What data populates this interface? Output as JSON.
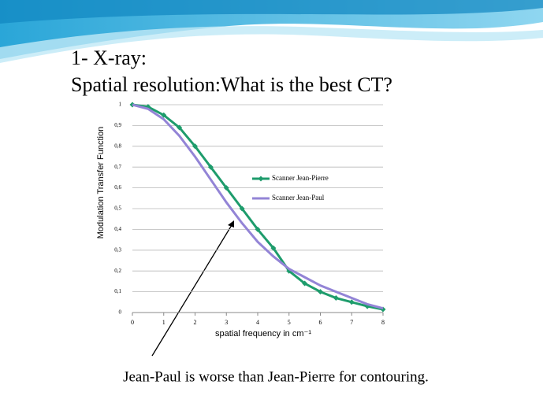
{
  "chart_data": {
    "type": "line",
    "title": "1- X-ray:",
    "subtitle": "Spatial resolution:What is the best CT?",
    "x_label": "spatial frequency in cm⁻¹",
    "y_label": "Modulation Transfer Function",
    "annotation": "Jean-Paul is worse than Jean-Pierre for contouring.",
    "x": [
      0,
      0.5,
      1,
      1.5,
      2,
      2.5,
      3,
      3.5,
      4,
      4.5,
      5,
      5.5,
      6,
      6.5,
      7,
      7.5,
      8
    ],
    "series": [
      {
        "name": "Scanner Jean-Pierre",
        "color": "#1e9c6c",
        "marker": "diamond",
        "values": [
          1,
          0.99,
          0.95,
          0.89,
          0.8,
          0.7,
          0.6,
          0.5,
          0.4,
          0.31,
          0.2,
          0.14,
          0.1,
          0.07,
          0.05,
          0.03,
          0.015
        ]
      },
      {
        "name": "Scanner Jean-Paul",
        "color": "#9384d6",
        "marker": "none",
        "values": [
          1,
          0.98,
          0.93,
          0.85,
          0.75,
          0.64,
          0.53,
          0.43,
          0.34,
          0.27,
          0.21,
          0.17,
          0.13,
          0.1,
          0.07,
          0.04,
          0.02
        ]
      }
    ],
    "xlim": [
      0,
      8
    ],
    "xticks": [
      0,
      1,
      2,
      3,
      4,
      5,
      6,
      7,
      8
    ],
    "ylim": [
      0,
      1
    ],
    "yticks": [
      0,
      {
        "value": 0.1,
        "label": "0,1"
      },
      {
        "value": 0.2,
        "label": "0,2"
      },
      {
        "value": 0.3,
        "label": "0,3"
      },
      {
        "value": 0.4,
        "label": "0,4"
      },
      {
        "value": 0.5,
        "label": "0,5"
      },
      {
        "value": 0.6,
        "label": "0,6"
      },
      {
        "value": 0.7,
        "label": "0,7"
      },
      {
        "value": 0.8,
        "label": "0,8"
      },
      {
        "value": 0.9,
        "label": "0,9"
      },
      1
    ],
    "grid": true
  }
}
